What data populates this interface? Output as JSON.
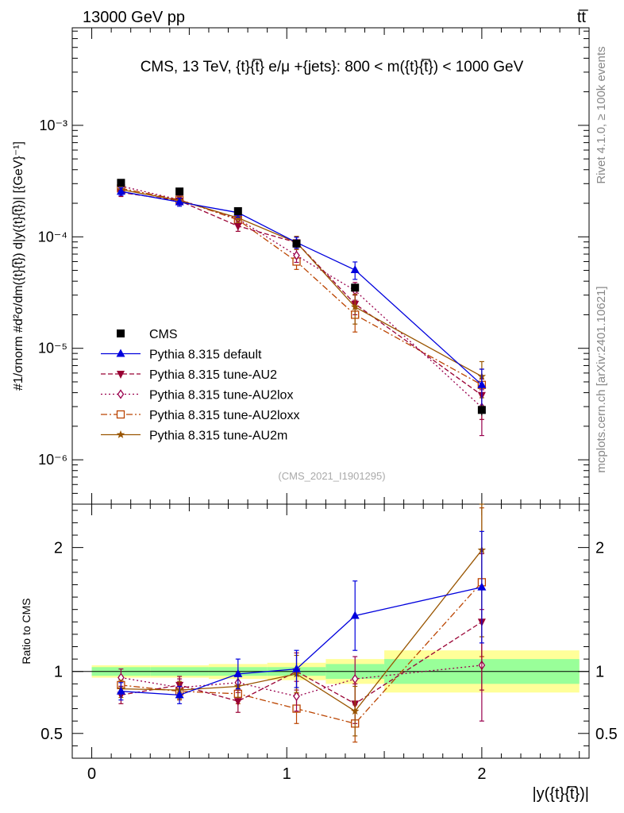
{
  "header": {
    "energy_label": "13000 GeV pp",
    "process_label": "tt̅"
  },
  "side": {
    "rivet_label": "Rivet 4.1.0, ≥ 100k events",
    "url_label": "mcplots.cern.ch [arXiv:2401.10621]"
  },
  "colors": {
    "cms": "#000000",
    "default": "#0000dd",
    "au2": "#990033",
    "au2lox": "#99004d",
    "au2loxx": "#bb4400",
    "au2m": "#995500",
    "band_inner": "#99ff99",
    "band_outer": "#ffff99"
  },
  "chart_data": [
    {
      "panel": "main",
      "type": "line",
      "title": "CMS, 13 TeV, {t}{t̅} e/μ +{jets}: 800 < m({t}{t̅}) < 1000 GeV",
      "watermark": "(CMS_2021_I1901295)",
      "ylabel": "#1/σnorm #d²σ/dm({t}{t̅}) d|y({t}{t̅})| [{GeV}⁻¹]",
      "yscale": "log",
      "xlim": [
        -0.1,
        2.55
      ],
      "ylim": [
        4e-07,
        0.0075
      ],
      "y_tick_labels": [
        "10⁻⁶",
        "10⁻⁵",
        "10⁻⁴",
        "10⁻³"
      ],
      "legend_position": "lower-left",
      "x": [
        0.15,
        0.45,
        0.75,
        1.05,
        1.35,
        2.0
      ],
      "series": [
        {
          "name": "CMS",
          "key": "cms",
          "marker": "square",
          "values": [
            0.000305,
            0.000255,
            0.00017,
            8.7e-05,
            3.5e-05,
            2.8e-06
          ],
          "err": [
            1e-05,
            1e-05,
            7e-06,
            4e-06,
            2e-06,
            3e-07
          ]
        },
        {
          "name": "Pythia 8.315 default",
          "key": "default",
          "marker": "triangle-up",
          "dash": "",
          "values": [
            0.000255,
            0.000205,
            0.000165,
            8.9e-05,
            5.05e-05,
            4.7e-06
          ],
          "err": [
            2e-05,
            1.7e-05,
            1.5e-05,
            1e-05,
            9e-06,
            1.8e-06
          ]
        },
        {
          "name": "Pythia 8.315 tune-AU2",
          "key": "au2",
          "marker": "triangle-down",
          "dash": "6,3",
          "values": [
            0.00025,
            0.00021,
            0.000125,
            8.9e-05,
            2.5e-05,
            3.8e-06
          ],
          "err": [
            2e-05,
            1.7e-05,
            1.3e-05,
            1.2e-05,
            5e-06,
            1.5e-06
          ]
        },
        {
          "name": "Pythia 8.315 tune-AU2lox",
          "key": "au2lox",
          "marker": "diamond",
          "dash": "2,3",
          "values": [
            0.000285,
            0.000215,
            0.000145,
            6.8e-05,
            3.3e-05,
            2.95e-06
          ],
          "err": [
            2e-05,
            1.7e-05,
            1.4e-05,
            9e-06,
            6e-06,
            1.3e-06
          ]
        },
        {
          "name": "Pythia 8.315 tune-AU2loxx",
          "key": "au2loxx",
          "marker": "open-square",
          "dash": "8,3,2,3",
          "values": [
            0.000272,
            0.000215,
            0.000142,
            6e-05,
            2e-05,
            4.7e-06
          ],
          "err": [
            2e-05,
            1.7e-05,
            1.4e-05,
            9e-06,
            6e-06,
            1.8e-06
          ]
        },
        {
          "name": "Pythia 8.315 tune-AU2m",
          "key": "au2m",
          "marker": "star",
          "dash": "",
          "values": [
            0.000265,
            0.000212,
            0.000148,
            8.9e-05,
            2.35e-05,
            5.6e-06
          ],
          "err": [
            2e-05,
            1.7e-05,
            1.4e-05,
            1.2e-05,
            7e-06,
            2e-06
          ]
        }
      ]
    },
    {
      "panel": "ratio",
      "type": "line",
      "ylabel": "Ratio to CMS",
      "xlabel": "|y({t}{t̅})|",
      "xlim": [
        -0.1,
        2.55
      ],
      "ylim": [
        0.3,
        2.35
      ],
      "x_ticks": [
        0,
        1,
        2
      ],
      "x_tick_labels": [
        "0",
        "1",
        "2"
      ],
      "y_ticks": [
        0.5,
        1,
        2
      ],
      "y_tick_labels": [
        "0.5",
        "1",
        "2"
      ],
      "x": [
        0.15,
        0.45,
        0.75,
        1.05,
        1.35,
        2.0
      ],
      "bands": {
        "edges": [
          0.0,
          0.3,
          0.6,
          0.9,
          1.2,
          1.5,
          2.5
        ],
        "inner": [
          0.035,
          0.035,
          0.035,
          0.035,
          0.06,
          0.1
        ],
        "outer": [
          0.05,
          0.05,
          0.06,
          0.07,
          0.1,
          0.17
        ]
      },
      "series": [
        {
          "key": "default",
          "values": [
            0.84,
            0.81,
            0.98,
            1.02,
            1.45,
            1.68
          ],
          "err": [
            0.07,
            0.07,
            0.12,
            0.15,
            0.28,
            0.45
          ]
        },
        {
          "key": "au2",
          "values": [
            0.81,
            0.89,
            0.76,
            1.0,
            0.74,
            1.4
          ],
          "err": [
            0.07,
            0.07,
            0.09,
            0.15,
            0.16,
            0.55
          ]
        },
        {
          "key": "au2lox",
          "values": [
            0.95,
            0.87,
            0.91,
            0.8,
            0.94,
            1.05
          ],
          "err": [
            0.07,
            0.07,
            0.08,
            0.12,
            0.18,
            0.45
          ]
        },
        {
          "key": "au2loxx",
          "values": [
            0.89,
            0.84,
            0.82,
            0.7,
            0.58,
            1.72
          ],
          "err": [
            0.07,
            0.07,
            0.08,
            0.12,
            0.15,
            0.6
          ]
        },
        {
          "key": "au2m",
          "values": [
            0.86,
            0.85,
            0.88,
            0.98,
            0.68,
            1.98
          ],
          "err": [
            0.07,
            0.07,
            0.09,
            0.15,
            0.2,
            0.7
          ]
        }
      ]
    }
  ]
}
